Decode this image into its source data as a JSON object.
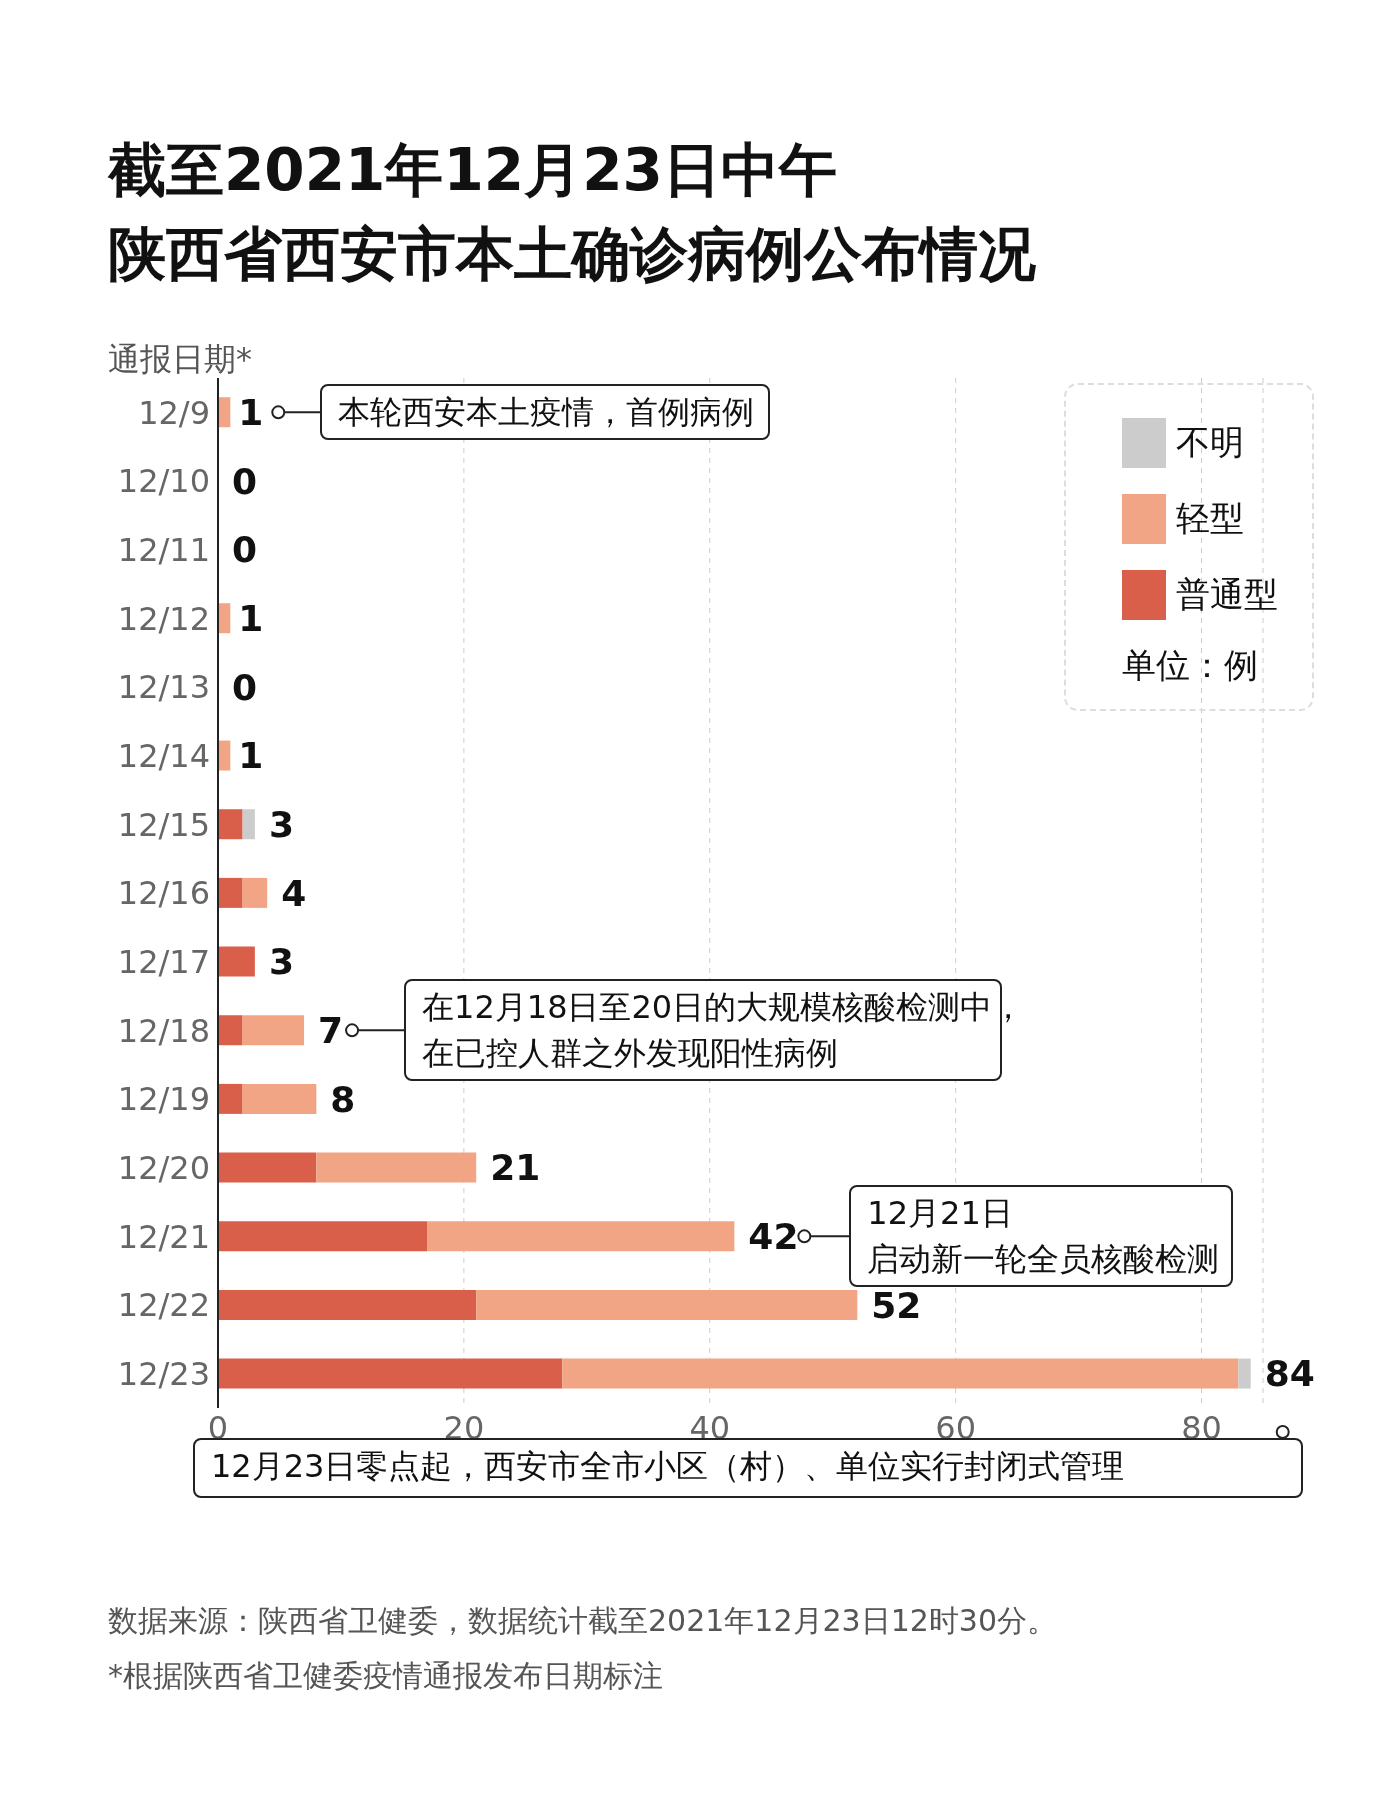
{
  "chart_data": {
    "type": "bar",
    "orientation": "horizontal",
    "stacked": true,
    "title": "截至2021年12月23日中午",
    "subtitle": "陕西省西安市本土确诊病例公布情况",
    "ylabel": "通报日期*",
    "categories": [
      "12/9",
      "12/10",
      "12/11",
      "12/12",
      "12/13",
      "12/14",
      "12/15",
      "12/16",
      "12/17",
      "12/18",
      "12/19",
      "12/20",
      "12/21",
      "12/22",
      "12/23"
    ],
    "series": [
      {
        "name": "普通型",
        "color": "#d95f4b",
        "values": [
          0,
          0,
          0,
          0,
          0,
          0,
          2,
          2,
          3,
          2,
          2,
          8,
          17,
          21,
          28
        ]
      },
      {
        "name": "轻型",
        "color": "#f2a584",
        "values": [
          1,
          0,
          0,
          1,
          0,
          1,
          0,
          2,
          0,
          5,
          6,
          13,
          25,
          31,
          55
        ]
      },
      {
        "name": "不明",
        "color": "#cccccc",
        "values": [
          0,
          0,
          0,
          0,
          0,
          0,
          1,
          0,
          0,
          0,
          0,
          0,
          0,
          0,
          1
        ]
      }
    ],
    "totals": [
      "1",
      "0",
      "0",
      "1",
      "0",
      "1",
      "3",
      "4",
      "3",
      "7",
      "8",
      "21",
      "42",
      "52",
      "84"
    ],
    "xlim": [
      0,
      85
    ],
    "xticks": [
      0,
      20,
      40,
      60,
      80
    ],
    "grid": "x",
    "legend": "top right",
    "legend_title": "单位：例",
    "annotations": [
      "本轮西安本土疫情，首例病例",
      "在12月18日至20日的大规模核酸检测中，",
      "在已控人群之外发现阳性病例",
      "12月21日",
      "启动新一轮全员核酸检测",
      "12月23日零点起，西安市全市小区（村）、单位实行封闭式管理",
      "数据来源：陕西省卫健委，数据统计截至2021年12月23日12时30分。",
      "*根据陕西省卫健委疫情通报发布日期标注"
    ]
  }
}
